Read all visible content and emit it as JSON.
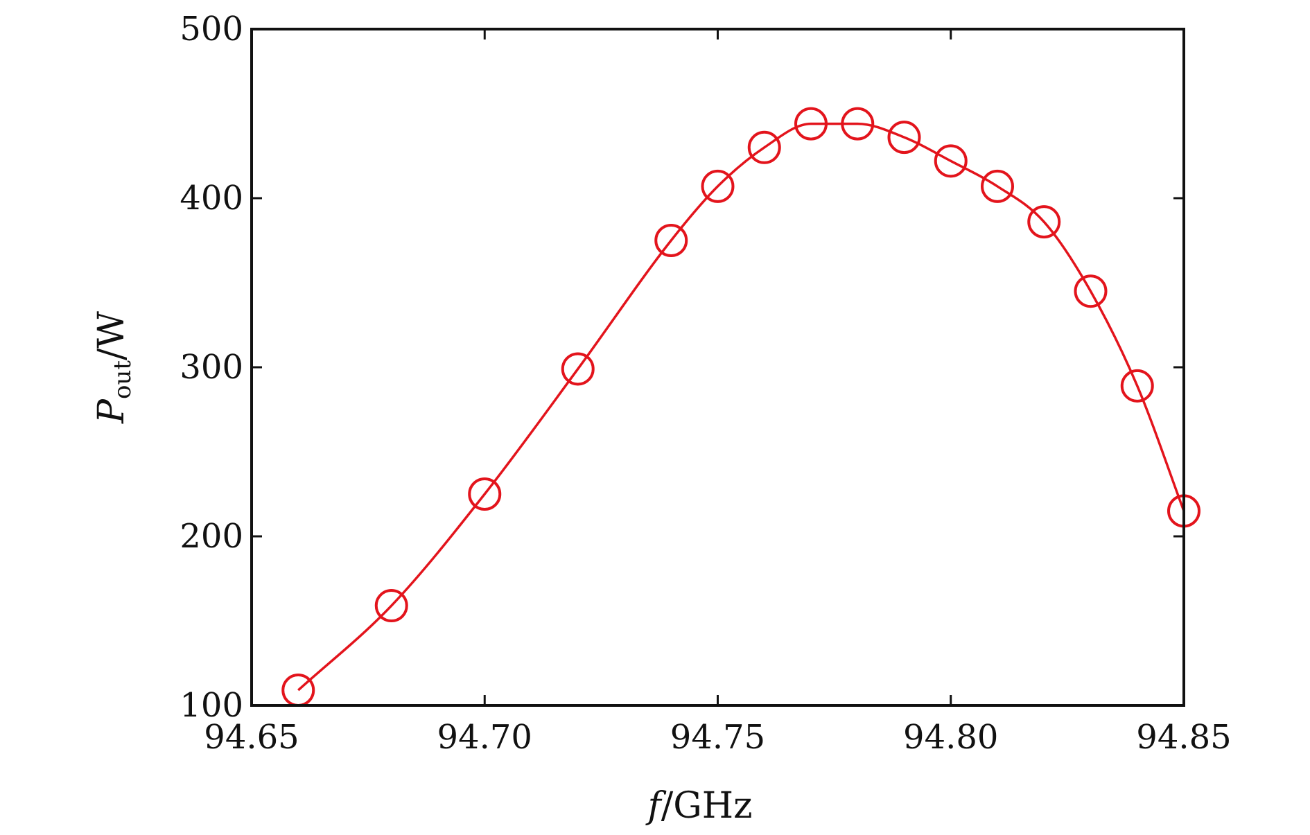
{
  "chart_data": {
    "type": "line",
    "title": "",
    "xlim": [
      94.65,
      94.85
    ],
    "ylim": [
      100,
      500
    ],
    "x_ticks": [
      94.65,
      94.7,
      94.75,
      94.8,
      94.85
    ],
    "x_tick_labels": [
      "94.65",
      "94.70",
      "94.75",
      "94.80",
      "94.85"
    ],
    "y_ticks": [
      100,
      200,
      300,
      400,
      500
    ],
    "y_tick_labels": [
      "100",
      "200",
      "300",
      "400",
      "500"
    ],
    "xlabel": {
      "symbol": "f",
      "unit": "/GHz"
    },
    "ylabel": {
      "symbol": "P",
      "subscript": "out",
      "unit": "/W"
    },
    "grid": false,
    "legend": "none",
    "series": [
      {
        "color": "#e3141c",
        "marker": "circle",
        "smooth_line": true,
        "x": [
          94.66,
          94.68,
          94.7,
          94.72,
          94.74,
          94.75,
          94.76,
          94.77,
          94.78,
          94.79,
          94.8,
          94.81,
          94.82,
          94.83,
          94.84,
          94.85
        ],
        "y": [
          109,
          159,
          225,
          299,
          375,
          407,
          430,
          444,
          444,
          436,
          422,
          407,
          386,
          345,
          289,
          215
        ]
      }
    ]
  }
}
